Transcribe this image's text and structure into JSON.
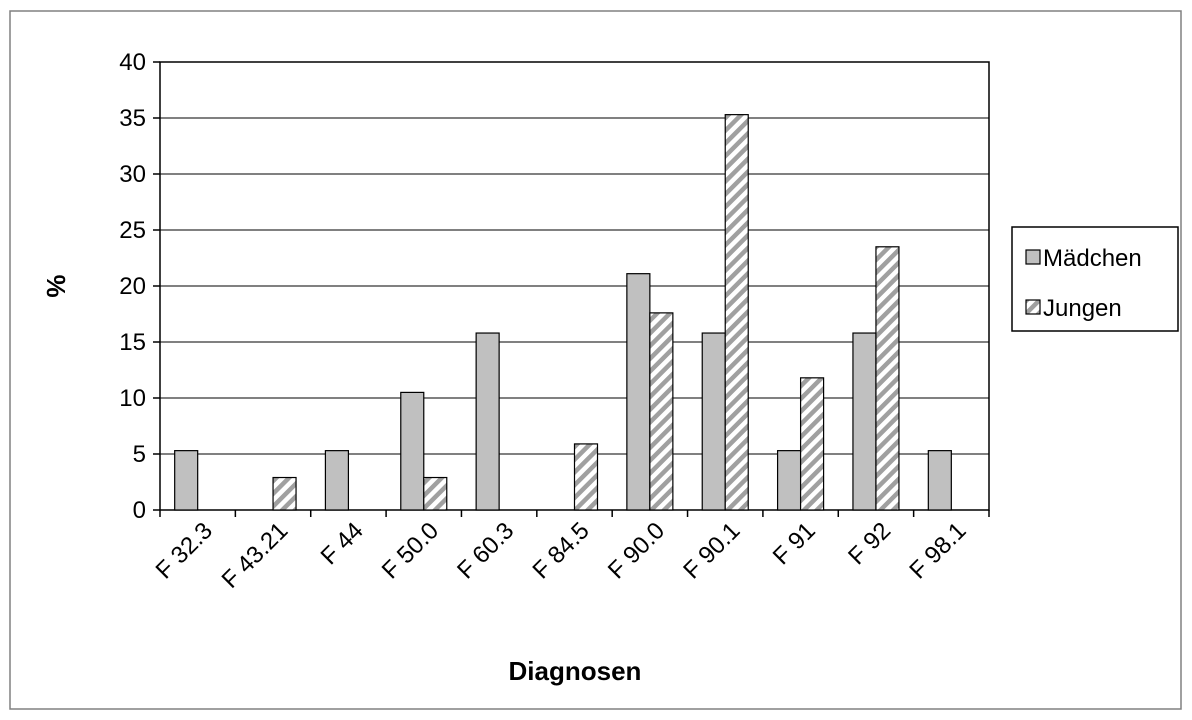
{
  "chart_data": {
    "type": "bar",
    "title": "",
    "xlabel": "Diagnosen",
    "ylabel": "%",
    "ylim": [
      0,
      40
    ],
    "yticks": [
      0,
      5,
      10,
      15,
      20,
      25,
      30,
      35,
      40
    ],
    "grid": true,
    "legend_position": "right",
    "categories": [
      "F 32.3",
      "F 43.21",
      "F 44",
      "F 50.0",
      "F 60.3",
      "F 84.5",
      "F 90.0",
      "F 90.1",
      "F 91",
      "F 92",
      "F 98.1"
    ],
    "series": [
      {
        "name": "Mädchen",
        "fill": "solid",
        "color": "#c0c0c0",
        "values": [
          5.3,
          0,
          5.3,
          10.5,
          15.8,
          0,
          21.1,
          15.8,
          5.3,
          15.8,
          5.3
        ]
      },
      {
        "name": "Jungen",
        "fill": "hatched",
        "color": "#c0c0c0",
        "values": [
          0,
          2.9,
          0,
          2.9,
          0,
          5.9,
          17.6,
          35.3,
          11.8,
          23.5,
          0
        ]
      }
    ]
  }
}
